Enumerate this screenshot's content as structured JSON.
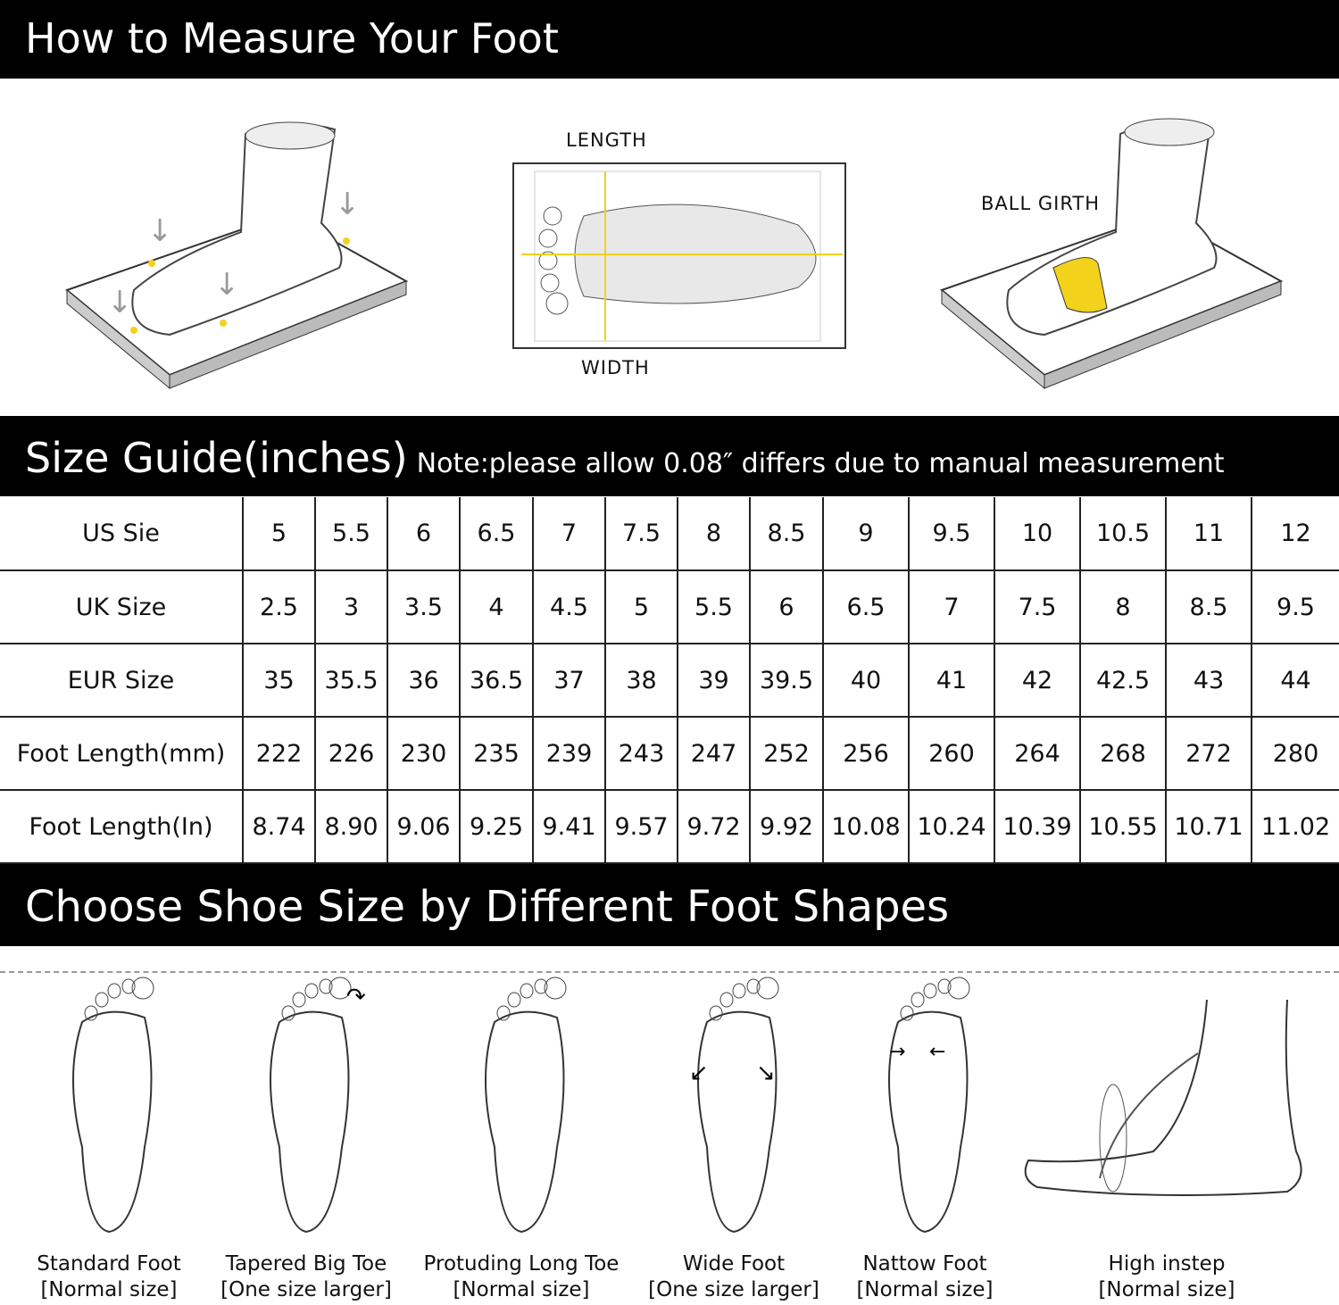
{
  "header": {
    "title": "How to Measure Your Foot"
  },
  "measure": {
    "length_label": "LENGTH",
    "width_label": "WIDTH",
    "ball_girth_label": "BALL GIRTH",
    "accent": "#f2d21b"
  },
  "size_guide": {
    "title": "Size Guide(inches)",
    "note": "Note:please allow 0.08″  differs due to manual measurement",
    "rows": [
      {
        "label": "US Sie",
        "values": [
          "5",
          "5.5",
          "6",
          "6.5",
          "7",
          "7.5",
          "8",
          "8.5",
          "9",
          "9.5",
          "10",
          "10.5",
          "11",
          "12"
        ]
      },
      {
        "label": "UK Size",
        "values": [
          "2.5",
          "3",
          "3.5",
          "4",
          "4.5",
          "5",
          "5.5",
          "6",
          "6.5",
          "7",
          "7.5",
          "8",
          "8.5",
          "9.5"
        ]
      },
      {
        "label": "EUR Size",
        "values": [
          "35",
          "35.5",
          "36",
          "36.5",
          "37",
          "38",
          "39",
          "39.5",
          "40",
          "41",
          "42",
          "42.5",
          "43",
          "44"
        ]
      },
      {
        "label": "Foot Length(mm)",
        "values": [
          "222",
          "226",
          "230",
          "235",
          "239",
          "243",
          "247",
          "252",
          "256",
          "260",
          "264",
          "268",
          "272",
          "280"
        ]
      },
      {
        "label": "Foot Length(In)",
        "values": [
          "8.74",
          "8.90",
          "9.06",
          "9.25",
          "9.41",
          "9.57",
          "9.72",
          "9.92",
          "10.08",
          "10.24",
          "10.39",
          "10.55",
          "10.71",
          "11.02"
        ]
      }
    ]
  },
  "shapes": {
    "title": "Choose Shoe Size by Different Foot Shapes",
    "items": [
      {
        "name": "Standard Foot",
        "advice": "[Normal size]"
      },
      {
        "name": "Tapered Big Toe",
        "advice": "[One size larger]"
      },
      {
        "name": "Protuding Long Toe",
        "advice": "[Normal size]"
      },
      {
        "name": "Wide Foot",
        "advice": "[One size larger]"
      },
      {
        "name": "Nattow Foot",
        "advice": "[Normal size]"
      },
      {
        "name": "High instep",
        "advice": "[Normal size]"
      }
    ]
  }
}
